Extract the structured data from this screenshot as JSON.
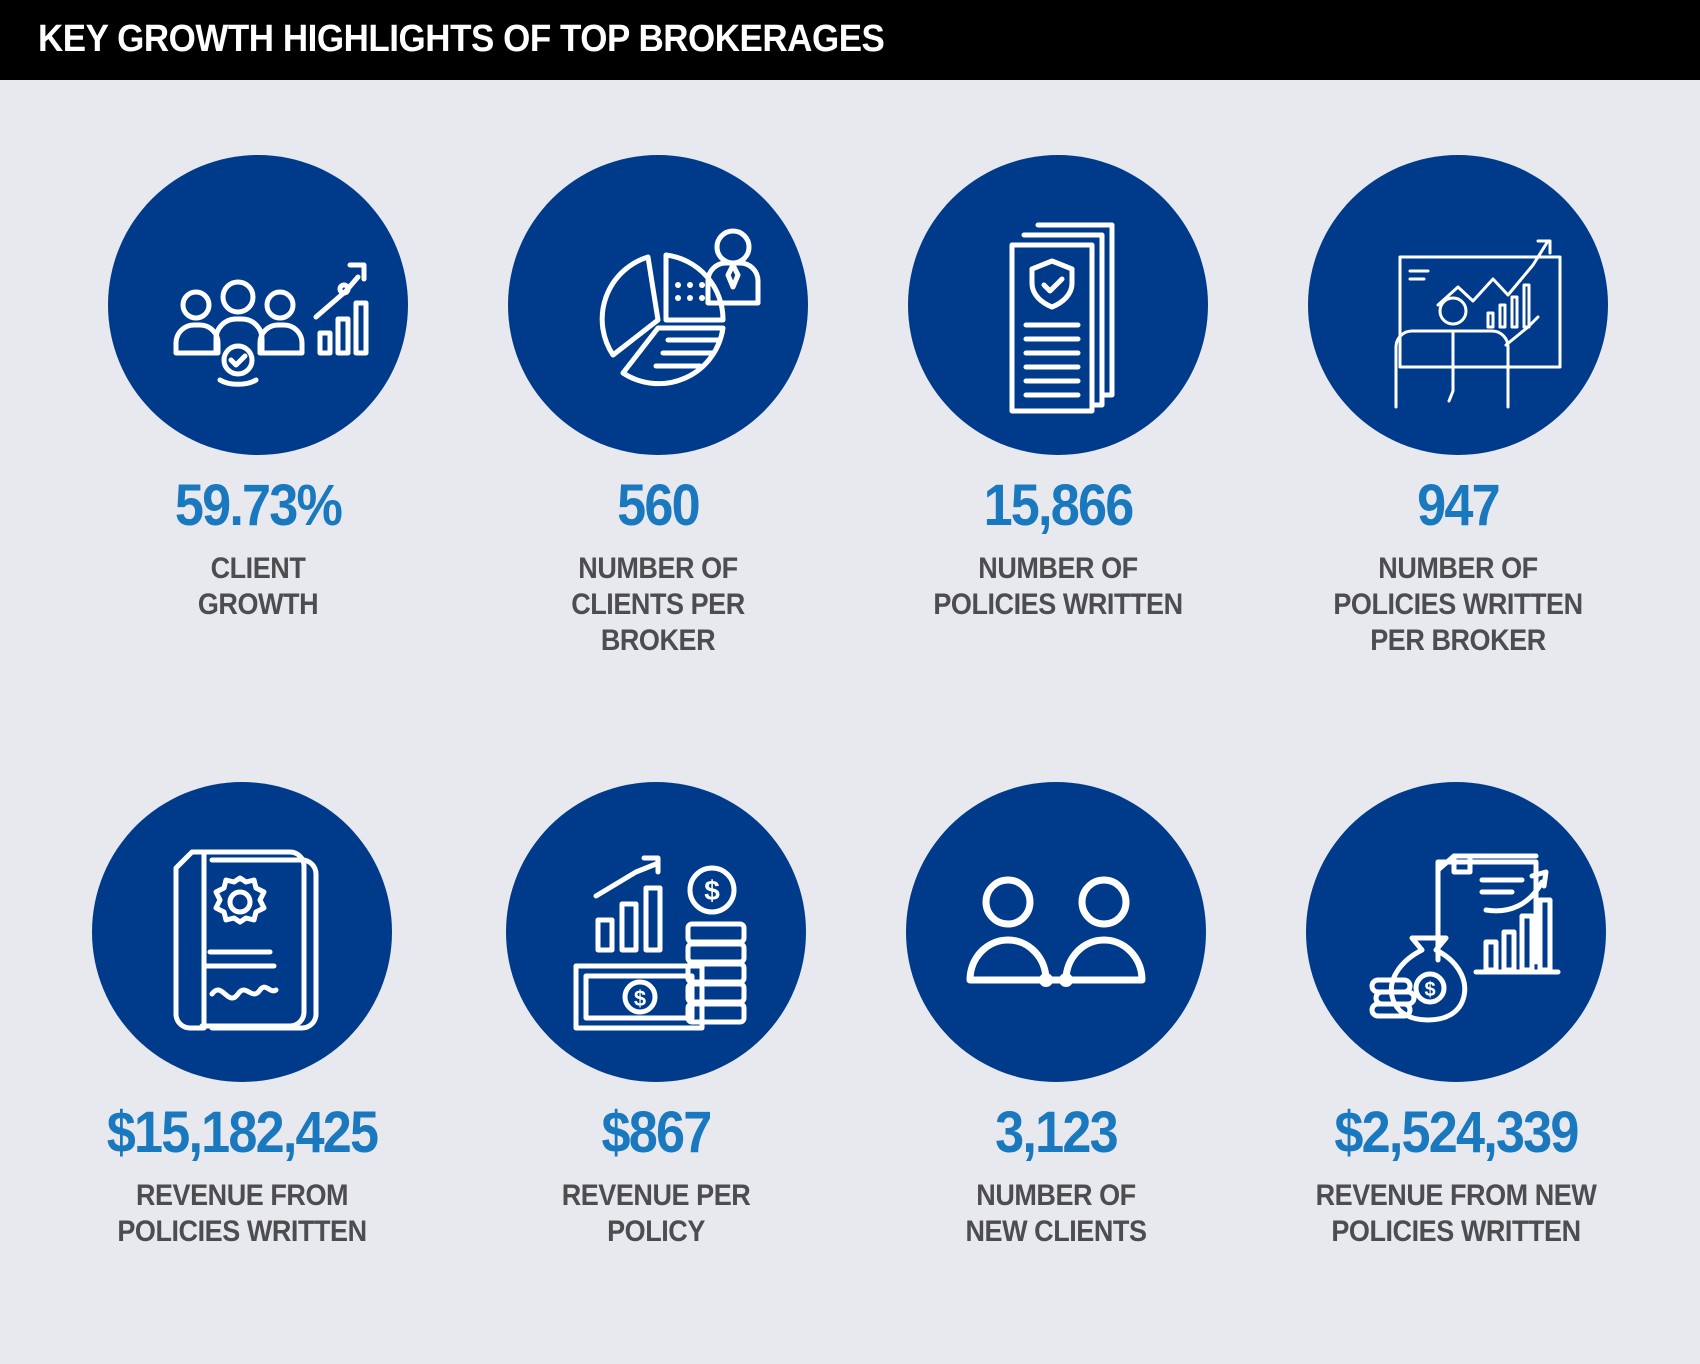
{
  "title": "KEY GROWTH HIGHLIGHTS OF TOP BROKERAGES",
  "colors": {
    "header_bg": "#000000",
    "circle": "#003b8b",
    "value": "#1a78be",
    "label": "#4d4d4f",
    "background": "#e8e9ee"
  },
  "stats": [
    {
      "icon": "client-growth-icon",
      "value": "59.73%",
      "label": "CLIENT\nGROWTH"
    },
    {
      "icon": "broker-pie-chart-icon",
      "value": "560",
      "label": "NUMBER OF\nCLIENTS PER\nBROKER"
    },
    {
      "icon": "policy-document-icon",
      "value": "15,866",
      "label": "NUMBER OF\nPOLICIES WRITTEN"
    },
    {
      "icon": "presentation-chart-icon",
      "value": "947",
      "label": "NUMBER OF\nPOLICIES WRITTEN\nPER BROKER"
    },
    {
      "icon": "certificate-document-icon",
      "value": "$15,182,425",
      "label": "REVENUE FROM\nPOLICIES WRITTEN"
    },
    {
      "icon": "money-growth-icon",
      "value": "$867",
      "label": "REVENUE PER\nPOLICY"
    },
    {
      "icon": "handshake-clients-icon",
      "value": "3,123",
      "label": "NUMBER OF\nNEW CLIENTS"
    },
    {
      "icon": "money-bag-report-icon",
      "value": "$2,524,339",
      "label": "REVENUE FROM NEW\nPOLICIES WRITTEN"
    }
  ]
}
